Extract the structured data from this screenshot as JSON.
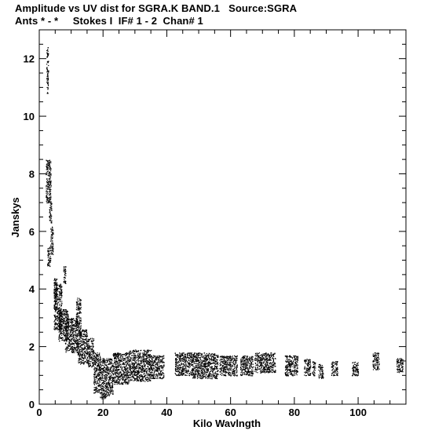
{
  "chart_data": {
    "type": "scatter",
    "title": "Amplitude vs UV dist for SGRA.K BAND.1   Source:SGRA",
    "subtitle": "Ants * - *     Stokes I  IF# 1 - 2  Chan# 1",
    "xlabel": "Kilo Wavlngth",
    "ylabel": "Janskys",
    "xlim": [
      0,
      115
    ],
    "ylim": [
      0,
      13
    ],
    "xticks": [
      "0",
      "20",
      "40",
      "60",
      "80",
      "100"
    ],
    "yticks": [
      "0",
      "2",
      "4",
      "6",
      "8",
      "10",
      "12"
    ],
    "grid": false,
    "marker_color": "#000000",
    "clusters": [
      {
        "x": [
          2.2,
          2.8
        ],
        "y": [
          10.8,
          12.4
        ]
      },
      {
        "x": [
          2.0,
          3.6
        ],
        "y": [
          7.0,
          8.5
        ]
      },
      {
        "x": [
          3.0,
          3.8
        ],
        "y": [
          6.3,
          7.0
        ]
      },
      {
        "x": [
          3.5,
          4.3
        ],
        "y": [
          5.2,
          6.2
        ]
      },
      {
        "x": [
          2.5,
          3.5
        ],
        "y": [
          4.8,
          5.5
        ]
      },
      {
        "x": [
          4.5,
          5.5
        ],
        "y": [
          3.3,
          4.4
        ]
      },
      {
        "x": [
          4.5,
          7.0
        ],
        "y": [
          2.6,
          4.2
        ]
      },
      {
        "x": [
          6.0,
          9.0
        ],
        "y": [
          2.2,
          3.3
        ]
      },
      {
        "x": [
          7.5,
          8.2
        ],
        "y": [
          4.2,
          4.8
        ]
      },
      {
        "x": [
          8.0,
          12.0
        ],
        "y": [
          1.8,
          3.0
        ]
      },
      {
        "x": [
          12.0,
          15.0
        ],
        "y": [
          1.4,
          2.6
        ]
      },
      {
        "x": [
          11.5,
          13.0
        ],
        "y": [
          2.6,
          3.7
        ]
      },
      {
        "x": [
          15.0,
          17.0
        ],
        "y": [
          1.3,
          2.3
        ]
      },
      {
        "x": [
          17.0,
          19.0
        ],
        "y": [
          0.4,
          1.8
        ]
      },
      {
        "x": [
          19.0,
          21.0
        ],
        "y": [
          0.2,
          1.6
        ]
      },
      {
        "x": [
          21.0,
          23.0
        ],
        "y": [
          0.3,
          1.6
        ]
      },
      {
        "x": [
          23.0,
          28.0
        ],
        "y": [
          0.7,
          1.8
        ]
      },
      {
        "x": [
          28.0,
          35.0
        ],
        "y": [
          0.8,
          1.9
        ]
      },
      {
        "x": [
          35.0,
          39.0
        ],
        "y": [
          0.9,
          1.7
        ]
      },
      {
        "x": [
          42.5,
          48.0
        ],
        "y": [
          1.0,
          1.8
        ]
      },
      {
        "x": [
          48.0,
          56.0
        ],
        "y": [
          0.9,
          1.8
        ]
      },
      {
        "x": [
          56.5,
          62.0
        ],
        "y": [
          1.0,
          1.7
        ]
      },
      {
        "x": [
          63.0,
          67.0
        ],
        "y": [
          1.0,
          1.7
        ]
      },
      {
        "x": [
          67.5,
          74.0
        ],
        "y": [
          1.1,
          1.8
        ]
      },
      {
        "x": [
          77.0,
          81.0
        ],
        "y": [
          1.0,
          1.7
        ]
      },
      {
        "x": [
          83.0,
          85.0
        ],
        "y": [
          1.0,
          1.6
        ]
      },
      {
        "x": [
          85.5,
          86.5
        ],
        "y": [
          1.0,
          1.5
        ]
      },
      {
        "x": [
          87.5,
          89.0
        ],
        "y": [
          0.9,
          1.4
        ]
      },
      {
        "x": [
          91.5,
          93.5
        ],
        "y": [
          1.0,
          1.5
        ]
      },
      {
        "x": [
          98.0,
          100.0
        ],
        "y": [
          1.0,
          1.5
        ]
      },
      {
        "x": [
          104.5,
          106.5
        ],
        "y": [
          1.2,
          1.8
        ]
      },
      {
        "x": [
          112.0,
          114.0
        ],
        "y": [
          1.1,
          1.6
        ]
      }
    ]
  }
}
